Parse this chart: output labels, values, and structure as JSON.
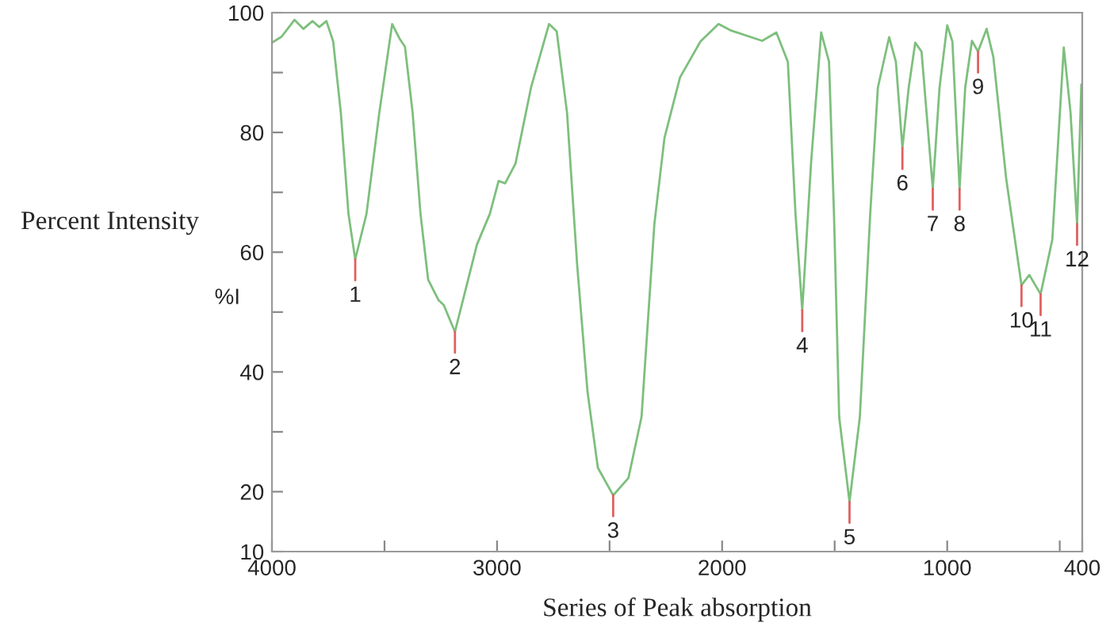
{
  "chart_data": {
    "type": "line",
    "xlabel": "Series of Peak absorption",
    "ylabel": "Percent Intensity",
    "x": [
      4000,
      3957,
      3900,
      3860,
      3820,
      3790,
      3758,
      3728,
      3694,
      3660,
      3630,
      3580,
      3523,
      3466,
      3432,
      3409,
      3375,
      3340,
      3306,
      3260,
      3237,
      3187,
      3146,
      3089,
      3032,
      2993,
      2964,
      2918,
      2849,
      2769,
      2735,
      2689,
      2644,
      2598,
      2552,
      2484,
      2416,
      2358,
      2301,
      2256,
      2187,
      2096,
      2016,
      1959,
      1822,
      1759,
      1708,
      1674,
      1644,
      1605,
      1560,
      1525,
      1503,
      1480,
      1434,
      1388,
      1342,
      1308,
      1258,
      1228,
      1199,
      1171,
      1142,
      1114,
      1064,
      1034,
      1000,
      977,
      945,
      920,
      890,
      863,
      825,
      795,
      738,
      670,
      635,
      585,
      533,
      482,
      452,
      423,
      404
    ],
    "series": [
      {
        "color": "#7dbf7d",
        "values": [
          95.0,
          96.0,
          98.8,
          97.3,
          98.6,
          97.6,
          98.6,
          95.2,
          83.3,
          66.4,
          58.8,
          66.4,
          83.3,
          98.1,
          95.6,
          94.3,
          83.3,
          66.4,
          55.4,
          52.0,
          51.2,
          46.7,
          52.8,
          61.3,
          66.4,
          71.9,
          71.5,
          74.8,
          87.5,
          98.1,
          96.9,
          83.3,
          57.9,
          36.7,
          24.0,
          19.4,
          22.3,
          32.5,
          64.7,
          79.1,
          89.2,
          95.2,
          98.1,
          97.0,
          95.3,
          96.7,
          91.8,
          66.4,
          50.3,
          74.8,
          96.7,
          91.8,
          66.4,
          32.5,
          18.3,
          32.5,
          66.4,
          87.5,
          95.9,
          91.8,
          77.4,
          87.5,
          95.0,
          93.5,
          70.6,
          87.5,
          97.9,
          95.2,
          70.6,
          87.5,
          95.3,
          93.5,
          97.3,
          92.6,
          72.3,
          54.5,
          56.2,
          53.0,
          62.1,
          94.2,
          83.3,
          64.7,
          88.0
        ]
      }
    ],
    "xlim": [
      4000,
      400
    ],
    "xticks": [
      4000,
      {
        "value": 3500,
        "label": null
      },
      3000,
      {
        "value": 2500,
        "label": null
      },
      2000,
      {
        "value": 1500,
        "label": null
      },
      1000,
      {
        "value": 500,
        "label": null
      },
      400
    ],
    "ylim": [
      10,
      100
    ],
    "yticks": [
      10,
      20,
      {
        "value": 30,
        "label": null
      },
      40,
      {
        "value": 50,
        "label": null
      },
      60,
      {
        "value": 70,
        "label": null
      },
      80,
      {
        "value": 90,
        "label": null
      },
      100
    ],
    "grid": false,
    "legend": false,
    "annotations": [
      "%I",
      {
        "text": "1",
        "x": 3630,
        "y": 58.8
      },
      {
        "text": "2",
        "x": 3187,
        "y": 46.7
      },
      {
        "text": "3",
        "x": 2484,
        "y": 19.4
      },
      {
        "text": "4",
        "x": 1644,
        "y": 50.3
      },
      {
        "text": "5",
        "x": 1434,
        "y": 18.3
      },
      {
        "text": "6",
        "x": 1199,
        "y": 77.4
      },
      {
        "text": "7",
        "x": 1064,
        "y": 70.6
      },
      {
        "text": "8",
        "x": 945,
        "y": 70.6
      },
      {
        "text": "9",
        "x": 863,
        "y": 93.5
      },
      {
        "text": "10",
        "x": 670,
        "y": 54.5
      },
      {
        "text": "11",
        "x": 585,
        "y": 53.0
      },
      {
        "text": "12",
        "x": 423,
        "y": 64.7
      }
    ]
  }
}
